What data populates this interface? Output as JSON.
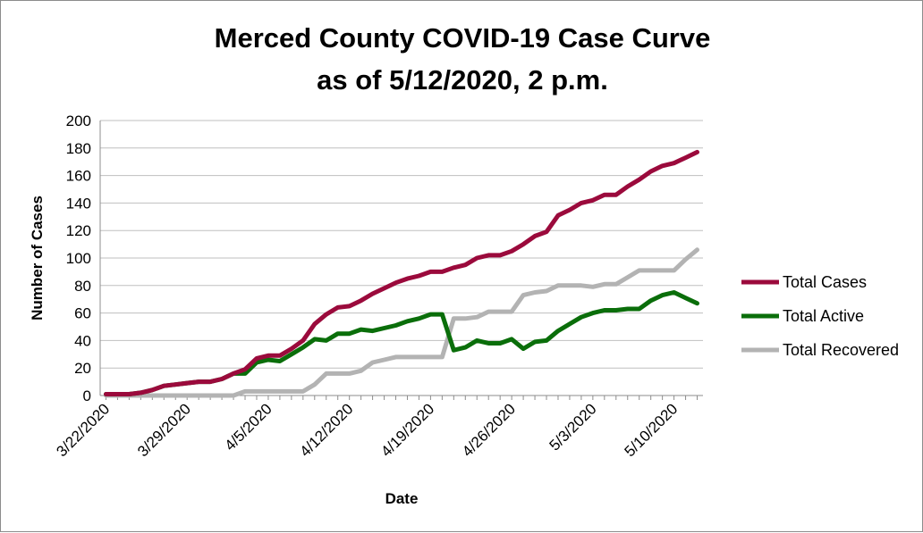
{
  "chart_data": {
    "type": "line",
    "title": "Merced County COVID-19 Case Curve",
    "subtitle": "as of 5/12/2020, 2 p.m.",
    "xlabel": "Date",
    "ylabel": "Number of Cases",
    "ylim": [
      0,
      200
    ],
    "yticks": [
      0,
      20,
      40,
      60,
      80,
      100,
      120,
      140,
      160,
      180,
      200
    ],
    "x_start": "3/22/2020",
    "x_end": "5/12/2020",
    "x_tick_labels": [
      "3/22/2020",
      "3/29/2020",
      "4/5/2020",
      "4/12/2020",
      "4/19/2020",
      "4/26/2020",
      "5/3/2020",
      "5/10/2020"
    ],
    "grid": true,
    "legend_position": "right",
    "dates": [
      "3/22/2020",
      "3/23/2020",
      "3/24/2020",
      "3/25/2020",
      "3/26/2020",
      "3/27/2020",
      "3/28/2020",
      "3/29/2020",
      "3/30/2020",
      "3/31/2020",
      "4/1/2020",
      "4/2/2020",
      "4/3/2020",
      "4/4/2020",
      "4/5/2020",
      "4/6/2020",
      "4/7/2020",
      "4/8/2020",
      "4/9/2020",
      "4/10/2020",
      "4/11/2020",
      "4/12/2020",
      "4/13/2020",
      "4/14/2020",
      "4/15/2020",
      "4/16/2020",
      "4/17/2020",
      "4/18/2020",
      "4/19/2020",
      "4/20/2020",
      "4/21/2020",
      "4/22/2020",
      "4/23/2020",
      "4/24/2020",
      "4/25/2020",
      "4/26/2020",
      "4/27/2020",
      "4/28/2020",
      "4/29/2020",
      "4/30/2020",
      "5/1/2020",
      "5/2/2020",
      "5/3/2020",
      "5/4/2020",
      "5/5/2020",
      "5/6/2020",
      "5/7/2020",
      "5/8/2020",
      "5/9/2020",
      "5/10/2020",
      "5/11/2020",
      "5/12/2020"
    ],
    "series": [
      {
        "name": "Total Cases",
        "color": "#9b0a3c",
        "values": [
          1,
          1,
          1,
          2,
          4,
          7,
          8,
          9,
          10,
          10,
          12,
          16,
          19,
          27,
          29,
          29,
          34,
          40,
          52,
          59,
          64,
          65,
          69,
          74,
          78,
          82,
          85,
          87,
          90,
          90,
          93,
          95,
          100,
          102,
          102,
          105,
          110,
          116,
          119,
          131,
          135,
          140,
          142,
          146,
          146,
          152,
          157,
          163,
          167,
          169,
          173,
          177
        ]
      },
      {
        "name": "Total Active",
        "color": "#0a6e0a",
        "values": [
          1,
          1,
          1,
          2,
          4,
          7,
          8,
          9,
          10,
          10,
          12,
          16,
          16,
          24,
          26,
          25,
          30,
          35,
          41,
          40,
          45,
          45,
          48,
          47,
          49,
          51,
          54,
          56,
          59,
          59,
          33,
          35,
          40,
          38,
          38,
          41,
          34,
          39,
          40,
          47,
          52,
          57,
          60,
          62,
          62,
          63,
          63,
          69,
          73,
          75,
          71,
          67
        ]
      },
      {
        "name": "Total Recovered",
        "color": "#b3b3b3",
        "values": [
          0,
          0,
          0,
          0,
          0,
          0,
          0,
          0,
          0,
          0,
          0,
          0,
          3,
          3,
          3,
          3,
          3,
          3,
          8,
          16,
          16,
          16,
          18,
          24,
          26,
          28,
          28,
          28,
          28,
          28,
          56,
          56,
          57,
          61,
          61,
          61,
          73,
          75,
          76,
          80,
          80,
          80,
          79,
          81,
          81,
          86,
          91,
          91,
          91,
          91,
          99,
          106
        ]
      }
    ]
  }
}
